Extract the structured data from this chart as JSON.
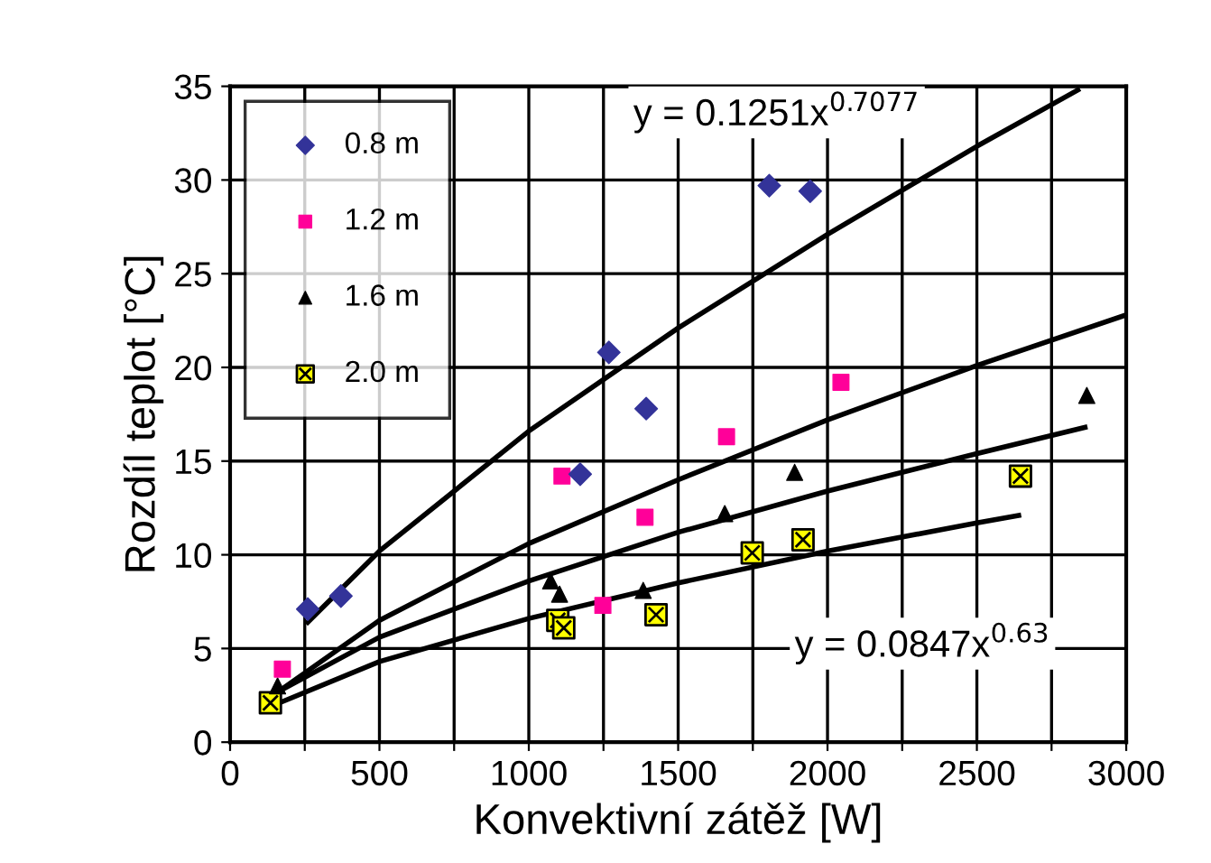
{
  "chart_data": {
    "type": "scatter",
    "xlabel": "Konvektivní zátěž [W]",
    "ylabel": "Rozdíl teplot [°C]",
    "xlim": [
      0,
      3000
    ],
    "ylim": [
      0,
      35
    ],
    "xticks": [
      0,
      {
        "value": 250,
        "label": null
      },
      500,
      {
        "value": 750,
        "label": null
      },
      1000,
      {
        "value": 1250,
        "label": null
      },
      1500,
      {
        "value": 1750,
        "label": null
      },
      2000,
      {
        "value": 2250,
        "label": null
      },
      2500,
      {
        "value": 2750,
        "label": null
      },
      3000
    ],
    "yticks": [
      0,
      5,
      10,
      15,
      20,
      25,
      30,
      35
    ],
    "grid": true,
    "legend": "top left",
    "annotations": [
      "y = 0.1251x$^{0.7077}$",
      "y = 0.0847x$^{0.63}$"
    ],
    "series": [
      {
        "name": "0.8 m",
        "color": "#333399",
        "marker": "diamond",
        "x": [
          260,
          371,
          1172,
          1268,
          1393,
          1805,
          1942
        ],
        "values": [
          7.1,
          7.8,
          14.3,
          20.8,
          17.8,
          29.7,
          29.4
        ]
      },
      {
        "name": "1.2 m",
        "color": "#ff0099",
        "marker": "square",
        "x": [
          175,
          1111,
          1248,
          1389,
          1662,
          2045
        ],
        "values": [
          3.9,
          14.2,
          7.3,
          12.0,
          16.3,
          19.2
        ]
      },
      {
        "name": "1.6 m",
        "color": "#000000",
        "marker": "triangle",
        "x": [
          159,
          1073,
          1103,
          1383,
          1656,
          1890,
          2868
        ],
        "values": [
          3.0,
          8.6,
          7.9,
          8.1,
          12.2,
          14.4,
          18.5
        ]
      },
      {
        "name": "2.0 m",
        "color": "#ffff00",
        "marker": "cross",
        "x": [
          135,
          1097,
          1117,
          1426,
          1748,
          1918,
          2646
        ],
        "values": [
          2.1,
          6.5,
          6.1,
          6.8,
          10.1,
          10.8,
          14.2
        ]
      },
      {
        "type": "line",
        "color": "#000000",
        "marker": "none",
        "line_style": "solid",
        "x": [
          260,
          500,
          1000,
          1500,
          2000,
          2500,
          2838
        ],
        "values": [
          6.4,
          10.2,
          16.6,
          22.1,
          27.1,
          31.8,
          34.8
        ]
      },
      {
        "type": "line",
        "color": "#000000",
        "marker": "none",
        "line_style": "solid",
        "x": [
          135,
          500,
          1000,
          1500,
          2000,
          2500,
          3000
        ],
        "values": [
          2.4,
          6.5,
          10.6,
          14.0,
          17.2,
          20.1,
          22.8
        ]
      },
      {
        "type": "line",
        "color": "#000000",
        "marker": "none",
        "line_style": "solid",
        "x": [
          150,
          500,
          1000,
          1500,
          2000,
          2500,
          2862
        ],
        "values": [
          2.6,
          5.6,
          8.6,
          11.2,
          13.4,
          15.4,
          16.8
        ]
      },
      {
        "type": "line",
        "color": "#000000",
        "marker": "none",
        "line_style": "solid",
        "x": [
          135,
          500,
          1000,
          1500,
          2000,
          2500,
          2640
        ],
        "values": [
          1.9,
          4.3,
          6.6,
          8.5,
          10.2,
          11.7,
          12.1
        ]
      }
    ]
  }
}
